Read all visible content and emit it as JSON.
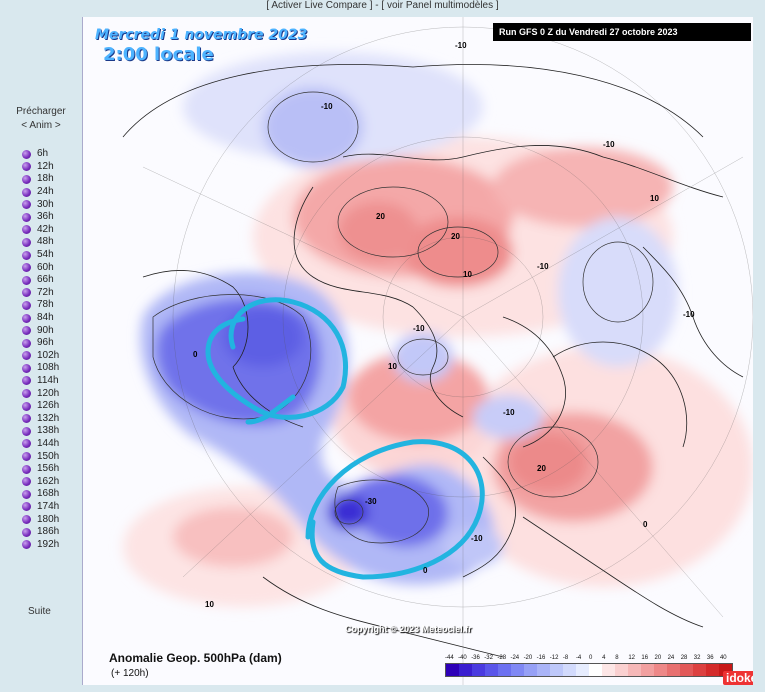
{
  "top_links": {
    "compare": "[ Activer Live Compare ]",
    "separator": "-",
    "panel": "[ voir Panel multimodèles ]"
  },
  "sidebar": {
    "preload_label": "Précharger",
    "anim_label": "< Anim >",
    "steps": [
      "6h",
      "12h",
      "18h",
      "24h",
      "30h",
      "36h",
      "42h",
      "48h",
      "54h",
      "60h",
      "66h",
      "72h",
      "78h",
      "84h",
      "90h",
      "96h",
      "102h",
      "108h",
      "114h",
      "120h",
      "126h",
      "132h",
      "138h",
      "144h",
      "150h",
      "156h",
      "162h",
      "168h",
      "174h",
      "180h",
      "186h",
      "192h"
    ],
    "next_label": "Suite"
  },
  "map": {
    "date_line": "Mercredi 1 novembre 2023",
    "time_line": "2:00 locale",
    "run_info": "Run GFS 0 Z du Vendredi 27 octobre 2023",
    "copyright": "Copyright © 2023 Meteociel.fr",
    "title": "Anomalie Geop. 500hPa (dam)",
    "subtitle": "(+ 120h)",
    "logo": "idoke",
    "contour_labels": {
      "n10a": "-10",
      "n10b": "-10",
      "n10c": "-10",
      "n10d": "-10",
      "n10e": "-10",
      "n10f": "-10",
      "n10g": "-10",
      "n10h": "-10",
      "p20a": "20",
      "p20b": "20",
      "p20c": "20",
      "p10a": "10",
      "p10b": "10",
      "p10c": "10",
      "p10d": "10",
      "zero_a": "0",
      "zero_b": "0",
      "zero_c": "0",
      "n30": "-30"
    },
    "legend_ticks": [
      "-44",
      "-40",
      "-36",
      "-32",
      "-28",
      "-24",
      "-20",
      "-16",
      "-12",
      "-8",
      "-4",
      "0",
      "4",
      "8",
      "12",
      "16",
      "20",
      "24",
      "28",
      "32",
      "36",
      "40"
    ],
    "legend_colors": [
      "#2e00b8",
      "#3a1ed0",
      "#4a3ae0",
      "#5a55ea",
      "#6c70f0",
      "#8088f4",
      "#96a0f6",
      "#aab4f8",
      "#bec8fa",
      "#d2dafc",
      "#e6ecfe",
      "#ffffff",
      "#fde6e6",
      "#fad0d0",
      "#f6b8b8",
      "#f2a0a0",
      "#ee8888",
      "#e87070",
      "#e25858",
      "#dc4040",
      "#d42a2a",
      "#c81818"
    ]
  }
}
